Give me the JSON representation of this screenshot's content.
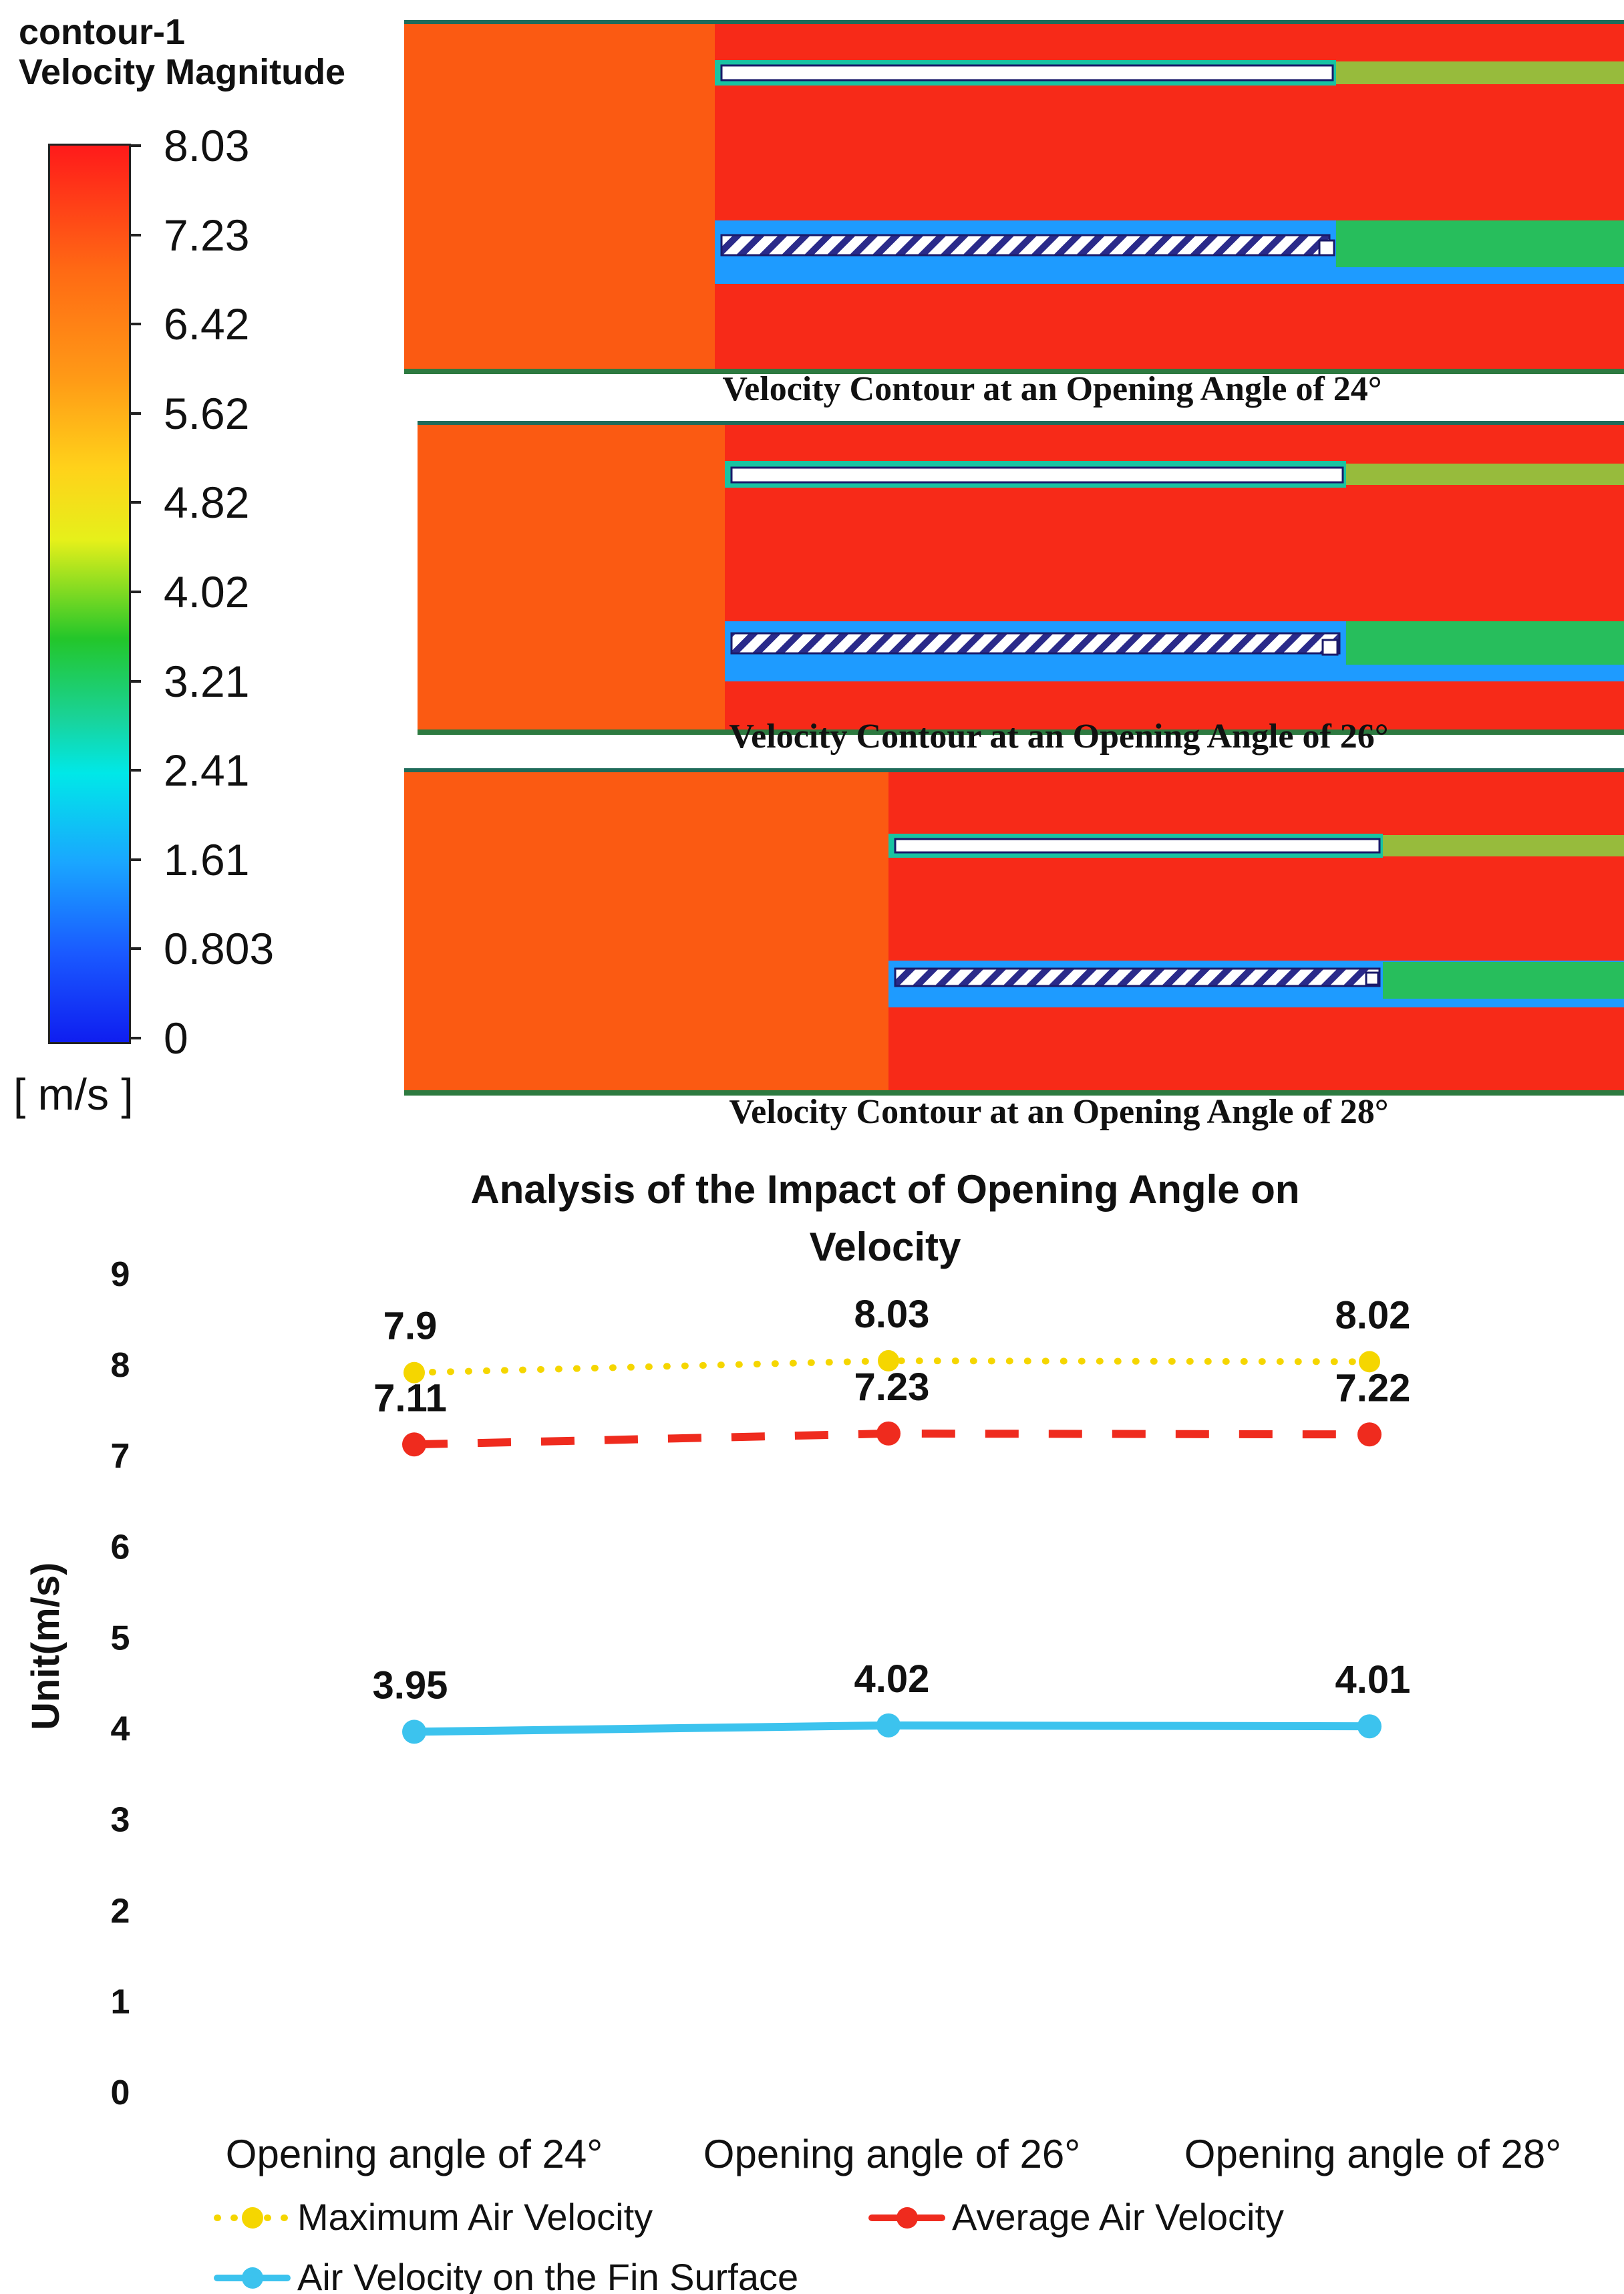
{
  "colorbar": {
    "title_line1": "contour-1",
    "title_line2": "Velocity Magnitude",
    "ticks": [
      "8.03",
      "7.23",
      "6.42",
      "5.62",
      "4.82",
      "4.02",
      "3.21",
      "2.41",
      "1.61",
      "0.803",
      "0"
    ],
    "unit": "[ m/s ]"
  },
  "contours": [
    {
      "caption": "Velocity Contour at an Opening Angle of 24°"
    },
    {
      "caption": "Velocity Contour at an Opening Angle of 26°"
    },
    {
      "caption": "Velocity Contour at an Opening Angle of 28°"
    }
  ],
  "chart_data": {
    "type": "line",
    "title": "Analysis of the Impact of Opening Angle on Velocity",
    "title_line1": "Analysis of the Impact of Opening Angle on",
    "title_line2": "Velocity",
    "ylabel": "Unit(m/s)",
    "xlabel": "",
    "ylim": [
      0,
      9
    ],
    "yticks": [
      0,
      1,
      2,
      3,
      4,
      5,
      6,
      7,
      8,
      9
    ],
    "categories": [
      "Opening angle of 24°",
      "Opening angle of 26°",
      "Opening angle of 28°"
    ],
    "series": [
      {
        "name": "Maximum Air Velocity",
        "values": [
          7.9,
          8.03,
          8.02
        ],
        "labels": [
          "7.9",
          "8.03",
          "8.02"
        ],
        "color": "#f5d600",
        "style": "dotted"
      },
      {
        "name": "Average Air Velocity",
        "values": [
          7.11,
          7.23,
          7.22
        ],
        "labels": [
          "7.11",
          "7.23",
          "7.22"
        ],
        "color": "#ef2b1e",
        "style": "dashed"
      },
      {
        "name": "Air Velocity on the Fin Surface",
        "values": [
          3.95,
          4.02,
          4.01
        ],
        "labels": [
          "3.95",
          "4.02",
          "4.01"
        ],
        "color": "#3cc3ee",
        "style": "solid"
      }
    ]
  }
}
